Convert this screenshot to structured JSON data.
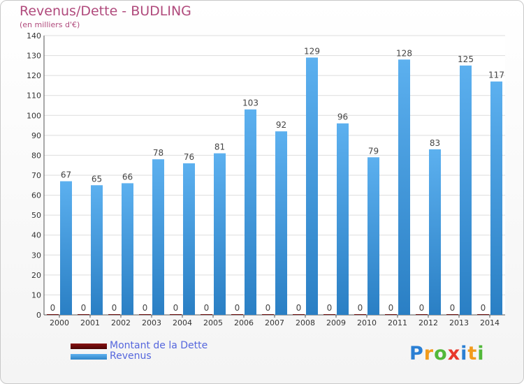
{
  "chart_data": {
    "type": "bar",
    "title": "Revenus/Dette - BUDLING",
    "subtitle": "(en milliers d'€)",
    "categories": [
      "2000",
      "2001",
      "2002",
      "2003",
      "2004",
      "2005",
      "2006",
      "2007",
      "2008",
      "2009",
      "2010",
      "2011",
      "2012",
      "2013",
      "2014"
    ],
    "series": [
      {
        "name": "Montant de la Dette",
        "color": "#6b0a0a",
        "values": [
          0,
          0,
          0,
          0,
          0,
          0,
          0,
          0,
          0,
          0,
          0,
          0,
          0,
          0,
          0
        ]
      },
      {
        "name": "Revenus",
        "color": "#3f9ee6",
        "values": [
          67,
          65,
          66,
          78,
          76,
          81,
          103,
          92,
          129,
          96,
          79,
          128,
          83,
          125,
          117
        ]
      }
    ],
    "ylim": [
      0,
      140
    ],
    "yticks": [
      0,
      10,
      20,
      30,
      40,
      50,
      60,
      70,
      80,
      90,
      100,
      110,
      120,
      130,
      140
    ],
    "grid": true,
    "legend_position": "bottom-left"
  },
  "logo": {
    "letters": [
      {
        "char": "P",
        "color": "#2a7fd4"
      },
      {
        "char": "r",
        "color": "#f29b1c"
      },
      {
        "char": "o",
        "color": "#52b83a"
      },
      {
        "char": "x",
        "color": "#e8382c"
      },
      {
        "char": "i",
        "color": "#2a7fd4"
      },
      {
        "char": "t",
        "color": "#f29b1c"
      },
      {
        "char": "i",
        "color": "#52b83a"
      }
    ]
  }
}
